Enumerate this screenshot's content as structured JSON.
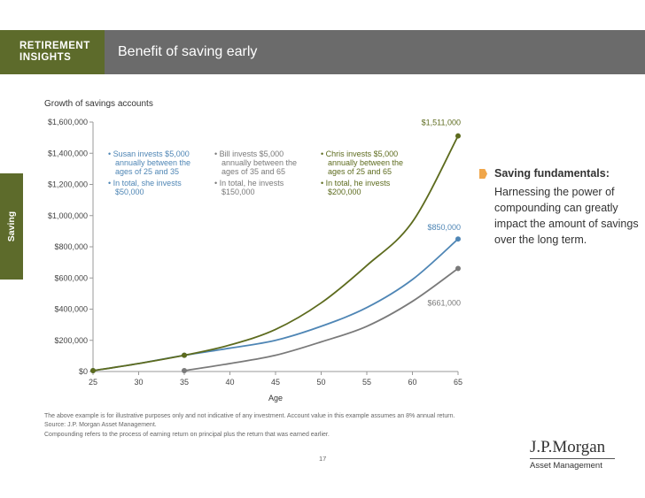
{
  "header": {
    "section_label_line1": "RETIREMENT",
    "section_label_line2": "INSIGHTS",
    "title": "Benefit of saving early"
  },
  "side_tab": "Saving",
  "colors": {
    "chris": "#5d6b1e",
    "susan": "#4f86b5",
    "bill": "#7a7a7a",
    "accent": "#f0a64a"
  },
  "chart_data": {
    "type": "line",
    "title": "Growth of savings accounts",
    "xlabel": "Age",
    "ylabel": "",
    "x_ticks": [
      25,
      30,
      35,
      40,
      45,
      50,
      55,
      60,
      65
    ],
    "y_ticks": [
      0,
      200000,
      400000,
      600000,
      800000,
      1000000,
      1200000,
      1400000,
      1600000
    ],
    "y_tick_labels": [
      "$0",
      "$200,000",
      "$400,000",
      "$600,000",
      "$800,000",
      "$1,000,000",
      "$1,200,000",
      "$1,400,000",
      "$1,600,000"
    ],
    "xlim": [
      25,
      65
    ],
    "ylim": [
      0,
      1600000
    ],
    "series": [
      {
        "name": "Chris",
        "color": "#5d6b1e",
        "x": [
          25,
          30,
          35,
          40,
          45,
          50,
          55,
          60,
          65
        ],
        "values": [
          5400,
          51000,
          104000,
          170000,
          270000,
          440000,
          680000,
          960000,
          1511000
        ],
        "end_label": "$1,511,000"
      },
      {
        "name": "Susan",
        "color": "#4f86b5",
        "x": [
          25,
          30,
          35,
          40,
          45,
          50,
          55,
          60,
          65
        ],
        "values": [
          5400,
          51000,
          104000,
          150000,
          200000,
          290000,
          410000,
          590000,
          850000
        ],
        "end_label": "$850,000"
      },
      {
        "name": "Bill",
        "color": "#7a7a7a",
        "x": [
          35,
          40,
          45,
          50,
          55,
          60,
          65
        ],
        "values": [
          5400,
          51000,
          104000,
          190000,
          290000,
          450000,
          661000
        ],
        "end_label": "$661,000"
      }
    ],
    "annotations": [
      {
        "lines": [
          "• Susan invests $5,000",
          "annually between the",
          "ages of 25 and 35"
        ],
        "lines2": [
          "• In total, she invests",
          "$50,000"
        ],
        "color": "#4f86b5"
      },
      {
        "lines": [
          "• Bill invests $5,000",
          "annually between the",
          "ages of 35 and 65"
        ],
        "lines2": [
          "• In total, he invests",
          "$150,000"
        ],
        "color": "#7a7a7a"
      },
      {
        "lines": [
          "• Chris invests $5,000",
          "annually between the",
          "ages of 25 and 65"
        ],
        "lines2": [
          "• In total, he invests",
          "$200,000"
        ],
        "color": "#5d6b1e"
      }
    ]
  },
  "fundamentals": {
    "title": "Saving fundamentals:",
    "body": "Harnessing the power of compounding can greatly impact the amount of savings over the long term."
  },
  "footnotes": {
    "line1": "The above example is for illustrative purposes only and not indicative of any investment. Account value in this example assumes an 8% annual return.",
    "line2": "Source: J.P. Morgan Asset Management.",
    "line3": "Compounding refers to the process of earning return on principal plus the return that was earned earlier."
  },
  "page_number": "17",
  "logo": {
    "name": "J.P.Morgan",
    "subtitle": "Asset Management"
  }
}
